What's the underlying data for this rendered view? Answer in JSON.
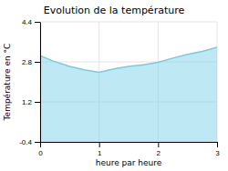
{
  "chart_data": {
    "type": "area",
    "title": "Evolution de la température",
    "xlabel": "heure par heure",
    "ylabel": "Température en °C",
    "x": [
      0,
      0.2,
      0.5,
      0.75,
      1.0,
      1.25,
      1.5,
      1.75,
      2.0,
      2.25,
      2.5,
      2.75,
      3.0
    ],
    "values": [
      3.05,
      2.85,
      2.62,
      2.48,
      2.38,
      2.52,
      2.62,
      2.68,
      2.78,
      2.95,
      3.1,
      3.22,
      3.38
    ],
    "baseline": -0.4,
    "color": "#72cce8",
    "xlim": [
      0,
      3
    ],
    "ylim": [
      -0.4,
      4.4
    ],
    "xticks": [
      0,
      1,
      2,
      3
    ],
    "yticks": [
      -0.4,
      1.2,
      2.8,
      4.4
    ],
    "grid": true
  }
}
